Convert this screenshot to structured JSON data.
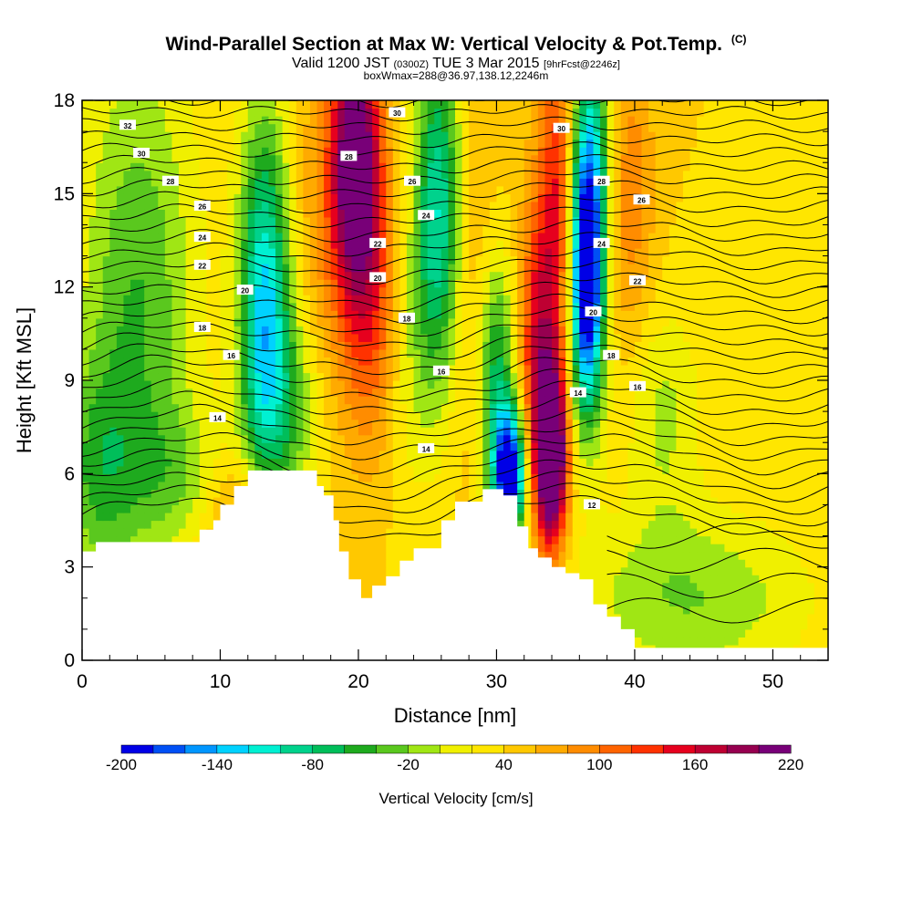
{
  "header": {
    "title": "Wind-Parallel Section at Max W: Vertical Velocity & Pot.Temp.",
    "title_badge": "(C)",
    "subtitle_pre": "Valid 1200 JST",
    "subtitle_utc": "(0300Z)",
    "subtitle_post": "TUE 3 Mar 2015",
    "subtitle_fcst": "[9hrFcst@2246z]",
    "subtitle2": "boxWmax=288@36.97,138.12,2246m"
  },
  "chart_data": {
    "type": "heatmap",
    "xlabel": "Distance [nm]",
    "ylabel": "Height [Kft MSL]",
    "xlim": [
      0,
      54
    ],
    "ylim": [
      0,
      18
    ],
    "x_ticks": [
      "0",
      "10",
      "20",
      "30",
      "40",
      "50"
    ],
    "y_ticks": [
      "0",
      "3",
      "6",
      "9",
      "12",
      "15",
      "18"
    ],
    "x_tick_values": [
      0,
      10,
      20,
      30,
      40,
      50
    ],
    "y_tick_values": [
      0,
      3,
      6,
      9,
      12,
      15,
      18
    ],
    "colorbar": {
      "label": "Vertical Velocity [cm/s]",
      "min": -200,
      "max": 220,
      "step": 20,
      "tick_labels": [
        "-200",
        "-140",
        "-80",
        "-20",
        "40",
        "100",
        "160",
        "220"
      ],
      "colors": [
        "#0000e6",
        "#0050f5",
        "#0096ff",
        "#00d2ff",
        "#00f0d2",
        "#00d28c",
        "#00be5a",
        "#1eaa1e",
        "#5ac81e",
        "#a0e614",
        "#f0f000",
        "#ffe600",
        "#ffc800",
        "#ffaa00",
        "#ff8c00",
        "#ff6400",
        "#ff3200",
        "#e6001e",
        "#be0032",
        "#960050",
        "#780078"
      ]
    },
    "vertical_velocity_field_cm_s": {
      "description_points": [
        {
          "x": 19.5,
          "y": 16,
          "w": 190
        },
        {
          "x": 21,
          "y": 12,
          "w": 120
        },
        {
          "x": 13,
          "y": 11,
          "w": -120
        },
        {
          "x": 25.5,
          "y": 15,
          "w": -100
        },
        {
          "x": 31,
          "y": 6,
          "w": -200
        },
        {
          "x": 34,
          "y": 6.5,
          "w": 210
        },
        {
          "x": 36.5,
          "y": 12,
          "w": -200
        },
        {
          "x": 34.5,
          "y": 15,
          "w": 100
        },
        {
          "x": 39,
          "y": 15,
          "w": 60
        },
        {
          "x": 4,
          "y": 12,
          "w": -40
        },
        {
          "x": 48,
          "y": 10,
          "w": 30
        },
        {
          "x": 45,
          "y": 2,
          "w": -10
        }
      ]
    },
    "potential_temperature_contours": {
      "labels": [
        {
          "text": "32",
          "x": 3.3,
          "y": 17.2
        },
        {
          "text": "30",
          "x": 4.3,
          "y": 16.3
        },
        {
          "text": "28",
          "x": 6.4,
          "y": 15.4
        },
        {
          "text": "26",
          "x": 8.7,
          "y": 14.6
        },
        {
          "text": "24",
          "x": 8.7,
          "y": 13.6
        },
        {
          "text": "22",
          "x": 8.7,
          "y": 12.7
        },
        {
          "text": "20",
          "x": 11.8,
          "y": 11.9
        },
        {
          "text": "18",
          "x": 8.7,
          "y": 10.7
        },
        {
          "text": "16",
          "x": 10.8,
          "y": 9.8
        },
        {
          "text": "14",
          "x": 9.8,
          "y": 7.8
        },
        {
          "text": "28",
          "x": 19.3,
          "y": 16.2
        },
        {
          "text": "30",
          "x": 22.8,
          "y": 17.6
        },
        {
          "text": "26",
          "x": 23.9,
          "y": 15.4
        },
        {
          "text": "24",
          "x": 24.9,
          "y": 14.3
        },
        {
          "text": "22",
          "x": 21.4,
          "y": 13.4
        },
        {
          "text": "20",
          "x": 21.4,
          "y": 12.3
        },
        {
          "text": "18",
          "x": 23.5,
          "y": 11.0
        },
        {
          "text": "16",
          "x": 26.0,
          "y": 9.3
        },
        {
          "text": "14",
          "x": 24.9,
          "y": 6.8
        },
        {
          "text": "30",
          "x": 34.7,
          "y": 17.1
        },
        {
          "text": "28",
          "x": 37.6,
          "y": 15.4
        },
        {
          "text": "26",
          "x": 40.5,
          "y": 14.8
        },
        {
          "text": "24",
          "x": 37.6,
          "y": 13.4
        },
        {
          "text": "22",
          "x": 40.2,
          "y": 12.2
        },
        {
          "text": "20",
          "x": 37.0,
          "y": 11.2
        },
        {
          "text": "18",
          "x": 38.3,
          "y": 9.8
        },
        {
          "text": "16",
          "x": 40.2,
          "y": 8.8
        },
        {
          "text": "14",
          "x": 35.9,
          "y": 8.6
        },
        {
          "text": "12",
          "x": 36.9,
          "y": 5.0
        }
      ]
    },
    "terrain_kft": {
      "x": [
        0,
        1,
        7.5,
        8.5,
        9.5,
        10,
        11,
        12,
        16,
        17,
        17.5,
        18.2,
        18.6,
        19.3,
        20.2,
        21,
        22,
        23,
        24,
        26,
        27,
        29,
        30.5,
        31.5,
        32.3,
        33,
        34,
        35,
        36,
        37,
        38,
        39,
        40,
        54
      ],
      "y": [
        3.5,
        3.8,
        3.8,
        4.2,
        4.5,
        5.0,
        5.6,
        6.1,
        6.1,
        5.6,
        5.3,
        4.5,
        3.5,
        2.6,
        2.0,
        2.4,
        2.7,
        3.2,
        3.6,
        4.5,
        5.1,
        5.5,
        5.3,
        4.3,
        3.6,
        3.3,
        3.0,
        2.8,
        2.6,
        1.8,
        1.4,
        1.0,
        0.4,
        0.3
      ]
    }
  }
}
